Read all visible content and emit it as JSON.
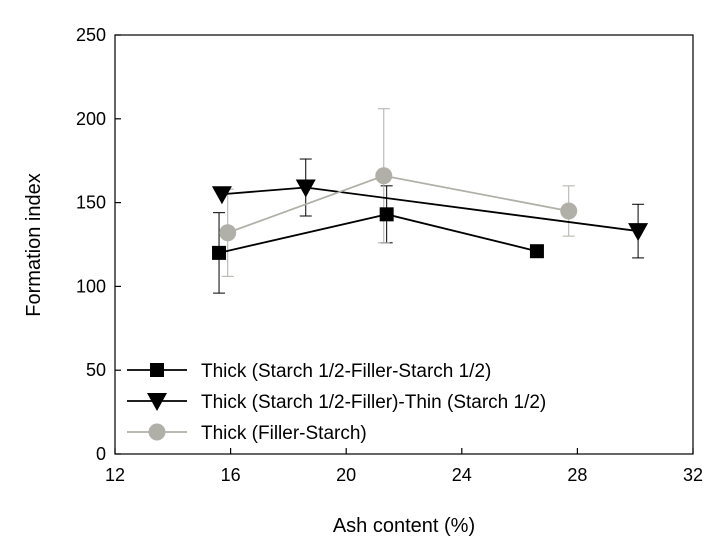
{
  "chart_data": {
    "type": "line",
    "title": "",
    "xlabel": "Ash content (%)",
    "ylabel": "Formation index",
    "xlim": [
      12,
      32
    ],
    "ylim": [
      0,
      250
    ],
    "xticks": [
      12,
      16,
      20,
      24,
      28,
      32
    ],
    "yticks": [
      0,
      50,
      100,
      150,
      200,
      250
    ],
    "grid": false,
    "legend_position": "bottom-left",
    "series": [
      {
        "name": "Thick (Starch 1/2-Filler-Starch 1/2)",
        "marker": "square",
        "color": "#000000",
        "x": [
          15.6,
          21.4,
          26.6
        ],
        "y": [
          120,
          143,
          121
        ],
        "err": [
          24,
          17,
          0
        ]
      },
      {
        "name": "Thick (Starch 1/2-Filler)-Thin (Starch 1/2)",
        "marker": "triangle-down",
        "color": "#000000",
        "x": [
          15.7,
          18.6,
          30.1
        ],
        "y": [
          155,
          159,
          133
        ],
        "err": [
          0,
          17,
          16
        ]
      },
      {
        "name": "Thick (Filler-Starch)",
        "marker": "circle",
        "color": "#b0b0a8",
        "x": [
          15.9,
          21.3,
          27.7
        ],
        "y": [
          132,
          166,
          145
        ],
        "err": [
          26,
          40,
          15
        ]
      }
    ]
  }
}
